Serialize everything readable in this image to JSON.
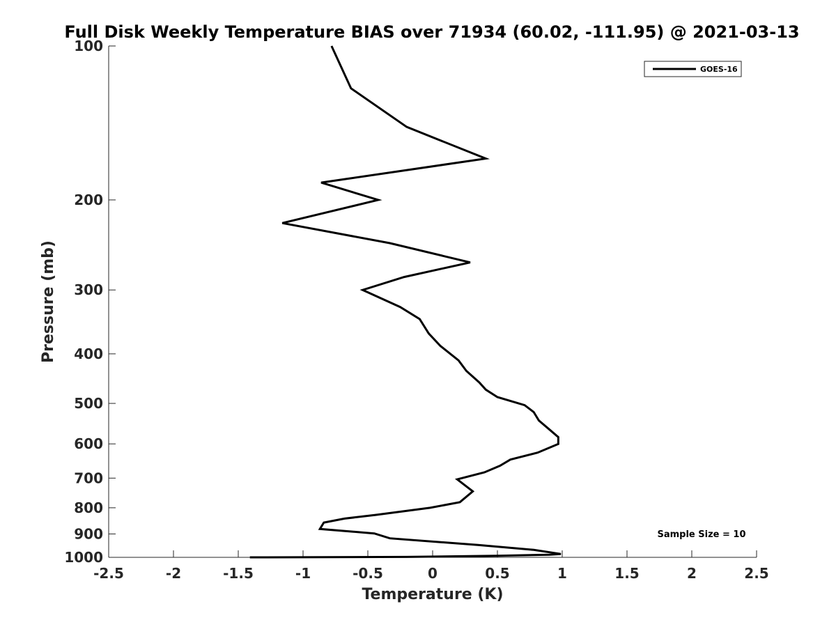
{
  "chart_data": {
    "type": "line",
    "title": "Full Disk Weekly Temperature BIAS over 71934 (60.02, -111.95) @ 2021-03-13",
    "xlabel": "Temperature (K)",
    "ylabel": "Pressure (mb)",
    "xlim": [
      -2.5,
      2.5
    ],
    "ylim": [
      100,
      1000
    ],
    "y_scale": "log",
    "y_reversed": true,
    "x_ticks": [
      "-2.5",
      "-2",
      "-1.5",
      "-1",
      "-0.5",
      "0",
      "0.5",
      "1",
      "1.5",
      "2",
      "2.5"
    ],
    "x_tick_values": [
      -2.5,
      -2,
      -1.5,
      -1,
      -0.5,
      0,
      0.5,
      1,
      1.5,
      2,
      2.5
    ],
    "y_ticks": [
      "100",
      "200",
      "300",
      "400",
      "500",
      "600",
      "700",
      "800",
      "900",
      "1000"
    ],
    "y_tick_values": [
      100,
      200,
      300,
      400,
      500,
      600,
      700,
      800,
      900,
      1000
    ],
    "grid": false,
    "legend_position": "top-right",
    "annotation": "Sample Size = 10",
    "line_color": "#000000",
    "series": [
      {
        "name": "GOES-16",
        "x": [
          -0.78,
          -0.63,
          -0.2,
          0.41,
          -0.86,
          -0.42,
          -1.16,
          -0.33,
          0.29,
          -0.22,
          -0.54,
          -0.25,
          -0.1,
          -0.03,
          0.06,
          0.2,
          0.26,
          0.36,
          0.41,
          0.5,
          0.71,
          0.78,
          0.82,
          0.9,
          0.97,
          0.97,
          0.81,
          0.6,
          0.52,
          0.4,
          0.19,
          0.31,
          0.21,
          -0.02,
          -0.44,
          -0.68,
          -0.84,
          -0.87,
          -0.45,
          -0.33,
          0.35,
          0.78,
          0.99,
          0.9,
          0.5,
          -0.2,
          -1.41
        ],
        "y": [
          100,
          121,
          144,
          166,
          185,
          200,
          222,
          243,
          265,
          283,
          300,
          324,
          342,
          365,
          386,
          412,
          432,
          455,
          470,
          486,
          504,
          520,
          540,
          562,
          582,
          600,
          624,
          644,
          662,
          682,
          704,
          743,
          780,
          800,
          826,
          840,
          855,
          880,
          898,
          918,
          946,
          967,
          985,
          988,
          993,
          998,
          1000
        ]
      }
    ]
  }
}
